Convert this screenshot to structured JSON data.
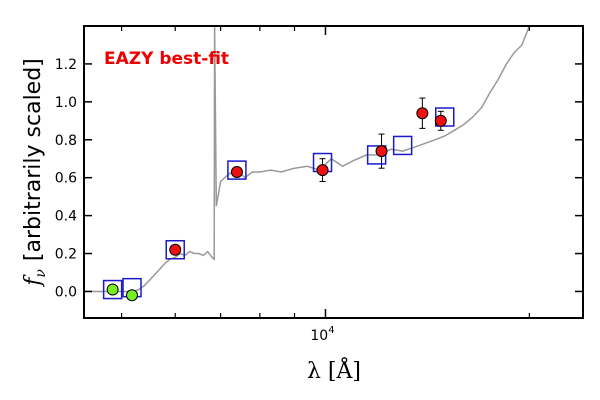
{
  "chart_data": {
    "type": "scatter",
    "title": "",
    "xlabel": "λ [Å]",
    "ylabel": "[arbitrarily scaled]",
    "ylabel_symbol": "f",
    "ylabel_subscript": "ν",
    "x_scale": "log",
    "xlim": [
      4400,
      24000
    ],
    "ylim": [
      -0.14,
      1.4
    ],
    "x_tick_labels": [
      {
        "value": 10000,
        "base": "10",
        "exponent": "4"
      }
    ],
    "x_minor_ticks": [
      5000,
      6000,
      7000,
      8000,
      9000,
      20000
    ],
    "y_ticks": [
      0.0,
      0.2,
      0.4,
      0.6,
      0.8,
      1.0,
      1.2
    ],
    "y_tick_labels": [
      "0.0",
      "0.2",
      "0.4",
      "0.6",
      "0.8",
      "1.0",
      "1.2"
    ],
    "annotation": {
      "text": "EAZY best-fit",
      "color": "#ee0000"
    },
    "colors": {
      "model_line": "#999999",
      "model_flux_box": "#1a1acc",
      "detection": "#ee1111",
      "non_detection": "#77ee22",
      "errorbar": "#000000"
    },
    "series": [
      {
        "type": "line",
        "x": [
          4400,
          5200,
          5300,
          5400,
          5500,
          5600,
          5700,
          5800,
          5900,
          6000,
          6100,
          6200,
          6300,
          6400,
          6500,
          6600,
          6700,
          6800,
          6850,
          6860,
          6900,
          7000,
          7100,
          7200,
          7400,
          7600,
          7800,
          8000,
          8300,
          8600,
          9000,
          9400,
          9800,
          10200,
          10600,
          11000,
          11500,
          12000,
          12500,
          13000,
          13500,
          14000,
          14500,
          15000,
          15500,
          16000,
          16500,
          17000,
          17500,
          18000,
          18500,
          19000,
          19500,
          20000
        ],
        "y": [
          0.0,
          0.0,
          0.01,
          0.03,
          0.06,
          0.09,
          0.12,
          0.15,
          0.17,
          0.18,
          0.2,
          0.19,
          0.21,
          0.2,
          0.2,
          0.19,
          0.21,
          0.18,
          0.17,
          1.4,
          0.45,
          0.58,
          0.6,
          0.62,
          0.64,
          0.6,
          0.63,
          0.63,
          0.64,
          0.63,
          0.65,
          0.66,
          0.64,
          0.7,
          0.66,
          0.69,
          0.72,
          0.72,
          0.75,
          0.74,
          0.76,
          0.78,
          0.8,
          0.82,
          0.85,
          0.88,
          0.92,
          0.97,
          1.05,
          1.12,
          1.2,
          1.26,
          1.3,
          1.4
        ]
      },
      {
        "type": "model_flux",
        "x": [
          4850,
          5180,
          6000,
          7400,
          9900,
          11900,
          13000,
          15000
        ],
        "y": [
          0.01,
          0.02,
          0.22,
          0.64,
          0.68,
          0.72,
          0.77,
          0.92
        ]
      },
      {
        "type": "detection",
        "x": [
          6000,
          7400,
          9900,
          12100,
          13900,
          14800
        ],
        "y": [
          0.22,
          0.63,
          0.64,
          0.74,
          0.94,
          0.9
        ],
        "yerr": [
          0.0,
          0.0,
          0.06,
          0.09,
          0.08,
          0.05
        ]
      },
      {
        "type": "non_detection",
        "x": [
          4850,
          5180
        ],
        "y": [
          0.01,
          -0.02
        ]
      }
    ]
  }
}
